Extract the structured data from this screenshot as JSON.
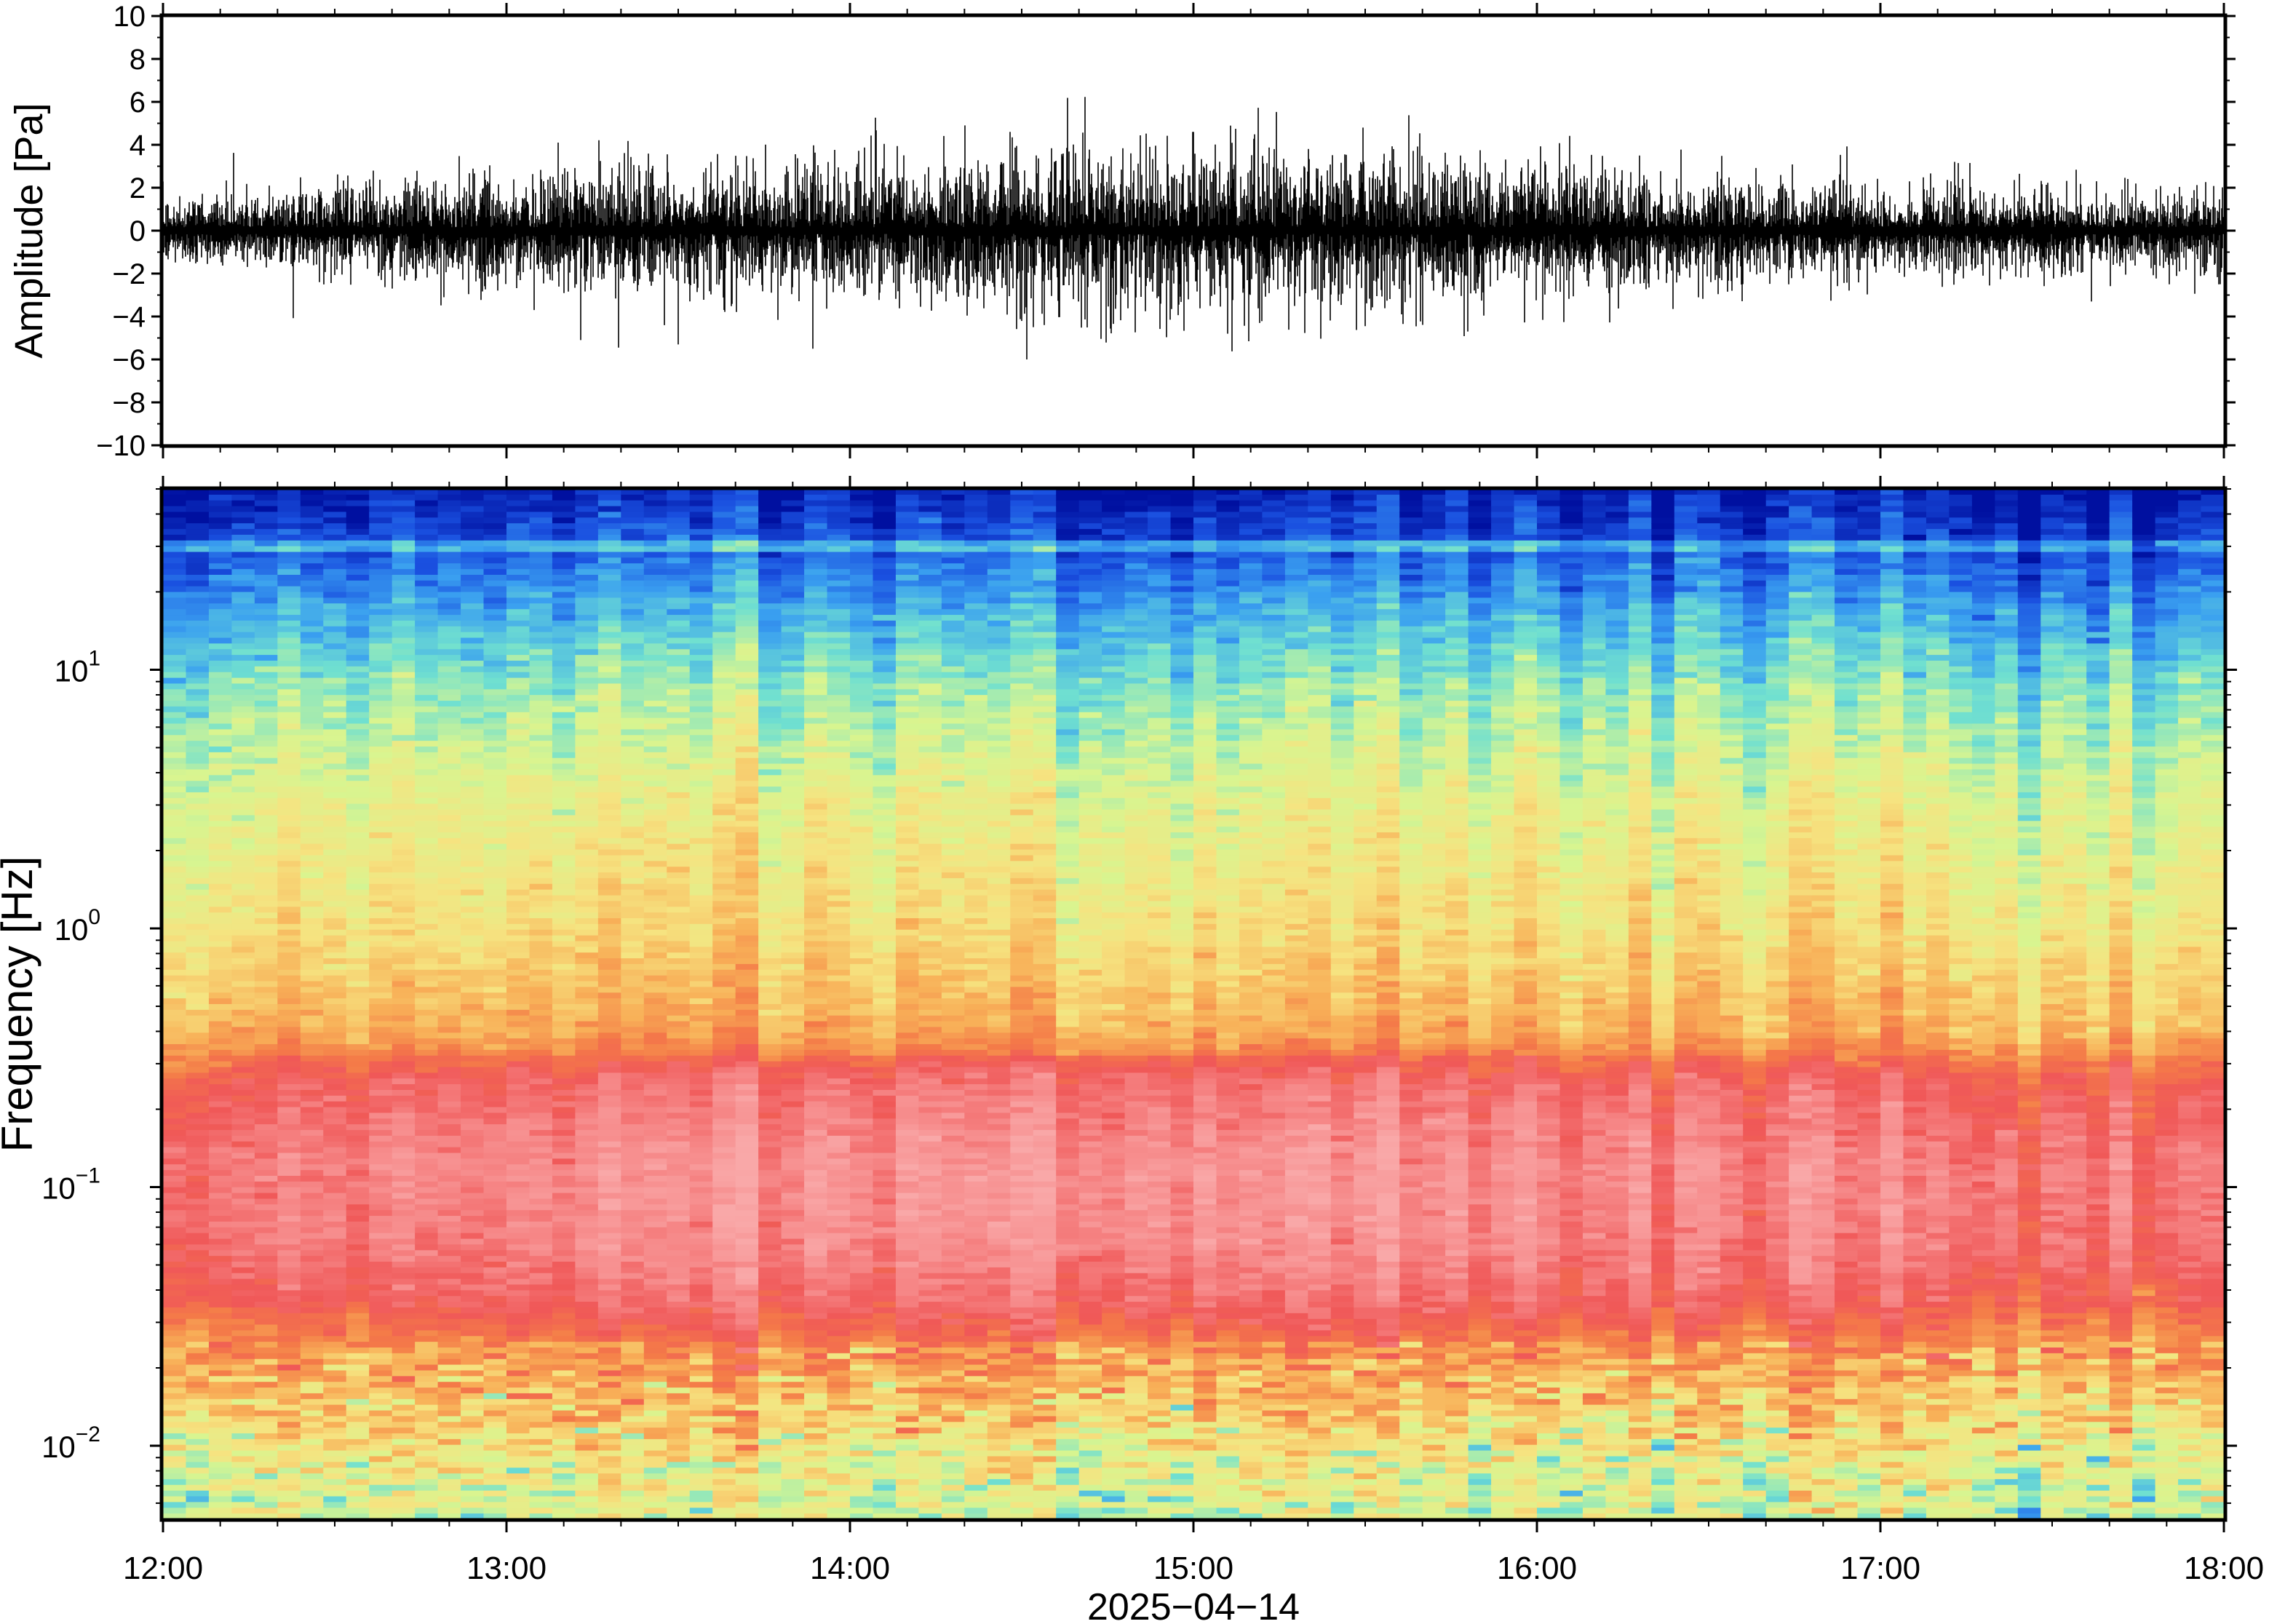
{
  "chart_data": [
    {
      "type": "line",
      "title": "",
      "xlabel": "",
      "ylabel": "Amplitude [Pa]",
      "ylim": [
        -10,
        10
      ],
      "yticks": [
        "10",
        "8",
        "6",
        "4",
        "2",
        "0",
        "−2",
        "−4",
        "−6",
        "−8",
        "−10"
      ],
      "ytick_values": [
        10,
        8,
        6,
        4,
        2,
        0,
        -2,
        -4,
        -6,
        -8,
        -10
      ],
      "xlim": [
        "2025-04-14 12:00",
        "2025-04-14 18:00"
      ],
      "series_color": "#000000",
      "noise_rms": 0.75,
      "envelope": {
        "x": [
          "12:00",
          "12:30",
          "13:00",
          "13:30",
          "14:00",
          "14:30",
          "15:00",
          "15:30",
          "16:00",
          "16:30",
          "17:00",
          "17:30",
          "18:00"
        ],
        "amplitude": [
          1.4,
          1.8,
          2.3,
          2.6,
          2.9,
          3.4,
          3.5,
          3.3,
          2.8,
          2.3,
          1.8,
          1.8,
          1.6
        ]
      },
      "peaks": [
        {
          "time": "12:40",
          "value": -2.7
        },
        {
          "time": "13:13",
          "value": -5.1
        },
        {
          "time": "13:30",
          "value": -5.3
        },
        {
          "time": "14:28",
          "value": 4.6
        },
        {
          "time": "14:31",
          "value": -6.0
        },
        {
          "time": "15:00",
          "value": 4.6
        },
        {
          "time": "15:06",
          "value": -4.8
        },
        {
          "time": "15:35",
          "value": 3.8
        },
        {
          "time": "15:48",
          "value": -4.7
        },
        {
          "time": "17:37",
          "value": -3.3
        }
      ],
      "grid": false
    },
    {
      "type": "heatmap",
      "title": "",
      "xlabel": "2025−04−14",
      "ylabel": "Frequency [Hz]",
      "yscale": "log",
      "ylim": [
        0.0052,
        50
      ],
      "yticks": [
        {
          "base": "10",
          "exp": "−2",
          "value": 0.01
        },
        {
          "base": "10",
          "exp": "−1",
          "value": 0.1
        },
        {
          "base": "10",
          "exp": "0",
          "value": 1
        },
        {
          "base": "10",
          "exp": "1",
          "value": 10
        }
      ],
      "xticks": [
        "12:00",
        "13:00",
        "14:00",
        "15:00",
        "16:00",
        "17:00",
        "18:00"
      ],
      "xlim": [
        "12:00",
        "18:00"
      ],
      "colormap": [
        "#0010a0",
        "#1a50e0",
        "#3aa0f0",
        "#70e0d0",
        "#d8f590",
        "#f6e380",
        "#f8b058",
        "#f47b48",
        "#f05858",
        "#f68888",
        "#f9a8a8"
      ],
      "spectrum_profile": {
        "frequency_hz": [
          50,
          30,
          15,
          8,
          3,
          1,
          0.4,
          0.25,
          0.12,
          0.06,
          0.035,
          0.025,
          0.015,
          0.008,
          0.0052
        ],
        "level": [
          0.02,
          0.1,
          0.24,
          0.34,
          0.44,
          0.5,
          0.6,
          0.8,
          0.88,
          0.86,
          0.78,
          0.66,
          0.56,
          0.44,
          0.4
        ]
      },
      "spectral_line_hz": 30,
      "time_windows": 90,
      "grid": false
    }
  ]
}
